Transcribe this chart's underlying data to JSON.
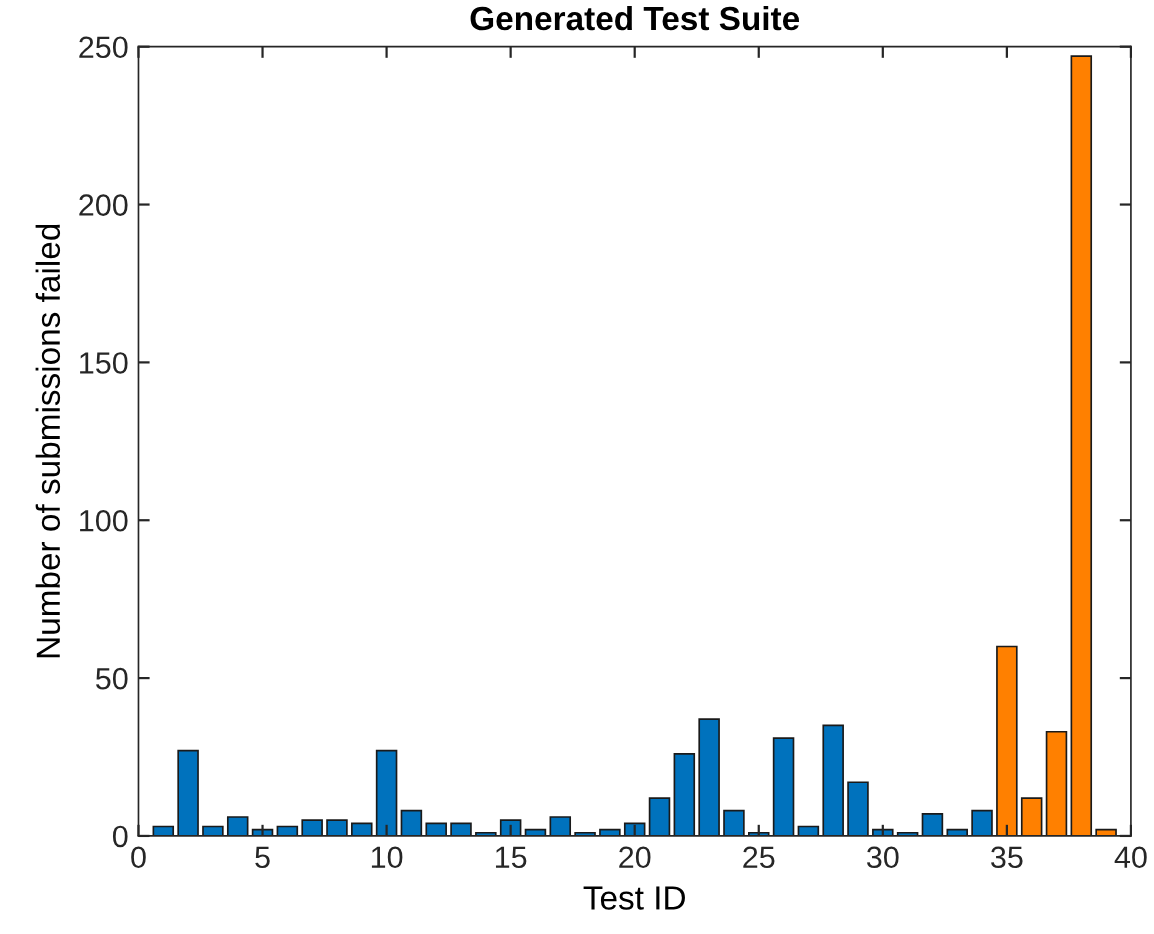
{
  "chart_data": {
    "type": "bar",
    "title": "Generated Test Suite",
    "xlabel": "Test ID",
    "ylabel": "Number of submissions failed",
    "series": [
      {
        "color": "#0072bd",
        "x": [
          1,
          2,
          3,
          4,
          5,
          6,
          7,
          8,
          9,
          10,
          11,
          12,
          13,
          14,
          15,
          16,
          17,
          18,
          19,
          20,
          21,
          22,
          23,
          24,
          25,
          26,
          27,
          28,
          29,
          30,
          31,
          32,
          33,
          34
        ],
        "values": [
          3,
          27,
          3,
          6,
          2,
          3,
          5,
          5,
          4,
          27,
          8,
          4,
          4,
          1,
          5,
          2,
          6,
          1,
          2,
          4,
          12,
          26,
          37,
          8,
          1,
          31,
          3,
          35,
          17,
          2,
          1,
          7,
          2,
          8
        ]
      },
      {
        "color": "#ff8000",
        "x": [
          35,
          36,
          37,
          38,
          39
        ],
        "values": [
          60,
          12,
          33,
          247,
          2
        ]
      }
    ],
    "xlim": [
      0,
      40
    ],
    "xticks": [
      0,
      5,
      10,
      15,
      20,
      25,
      30,
      35,
      40
    ],
    "ylim": [
      0,
      250
    ],
    "yticks": [
      0,
      50,
      100,
      150,
      200,
      250
    ],
    "grid": false,
    "legend": false
  }
}
